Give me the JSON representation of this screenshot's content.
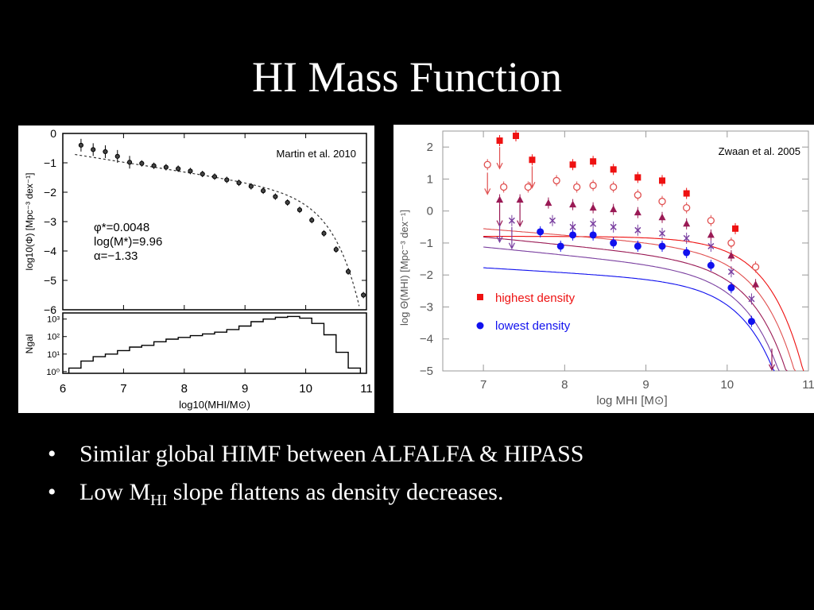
{
  "slide": {
    "title": "HI Mass Function",
    "bullets": [
      {
        "text": "Similar global HIMF between ALFALFA & HIPASS"
      },
      {
        "prefix": "Low M",
        "subscript": "HI",
        "suffix": " slope flattens as density decreases."
      }
    ]
  },
  "chart_data": [
    {
      "type": "scatter",
      "panel": "left-top",
      "annotation": "Martin et al. 2010",
      "ylabel": "log10(Φ) [Mpc⁻³ dex⁻¹]",
      "xlim": [
        6,
        11
      ],
      "ylim": [
        -6,
        0
      ],
      "grid": false,
      "text_labels": [
        "φ*=0.0048",
        "log(M*)=9.96",
        "α=−1.33"
      ],
      "points": [
        {
          "x": 6.3,
          "y": -0.4
        },
        {
          "x": 6.5,
          "y": -0.55
        },
        {
          "x": 6.7,
          "y": -0.62
        },
        {
          "x": 6.9,
          "y": -0.78
        },
        {
          "x": 7.1,
          "y": -0.98
        },
        {
          "x": 7.3,
          "y": -1.02
        },
        {
          "x": 7.5,
          "y": -1.1
        },
        {
          "x": 7.7,
          "y": -1.15
        },
        {
          "x": 7.9,
          "y": -1.2
        },
        {
          "x": 8.1,
          "y": -1.28
        },
        {
          "x": 8.3,
          "y": -1.38
        },
        {
          "x": 8.5,
          "y": -1.47
        },
        {
          "x": 8.7,
          "y": -1.58
        },
        {
          "x": 8.9,
          "y": -1.68
        },
        {
          "x": 9.1,
          "y": -1.8
        },
        {
          "x": 9.3,
          "y": -1.95
        },
        {
          "x": 9.5,
          "y": -2.15
        },
        {
          "x": 9.7,
          "y": -2.35
        },
        {
          "x": 9.9,
          "y": -2.6
        },
        {
          "x": 10.1,
          "y": -2.95
        },
        {
          "x": 10.3,
          "y": -3.4
        },
        {
          "x": 10.5,
          "y": -3.95
        },
        {
          "x": 10.7,
          "y": -4.7
        },
        {
          "x": 10.95,
          "y": -5.5
        }
      ],
      "fit": {
        "phi_star": 0.0048,
        "log_mstar": 9.96,
        "alpha": -1.33
      }
    },
    {
      "type": "bar",
      "panel": "left-bottom",
      "xlabel": "log10(MHI/M⊙)",
      "ylabel": "Ngal",
      "xlim": [
        6,
        11
      ],
      "yticks": [
        "10⁰",
        "10¹",
        "10²",
        "10³"
      ],
      "xticks": [
        "6",
        "7",
        "8",
        "9",
        "10",
        "11"
      ],
      "bins": [
        {
          "x": 6.2,
          "y": 0.2
        },
        {
          "x": 6.4,
          "y": 0.6
        },
        {
          "x": 6.6,
          "y": 0.85
        },
        {
          "x": 6.8,
          "y": 1.0
        },
        {
          "x": 7.0,
          "y": 1.2
        },
        {
          "x": 7.2,
          "y": 1.4
        },
        {
          "x": 7.4,
          "y": 1.5
        },
        {
          "x": 7.6,
          "y": 1.7
        },
        {
          "x": 7.8,
          "y": 1.85
        },
        {
          "x": 8.0,
          "y": 1.95
        },
        {
          "x": 8.2,
          "y": 2.05
        },
        {
          "x": 8.4,
          "y": 2.15
        },
        {
          "x": 8.6,
          "y": 2.25
        },
        {
          "x": 8.8,
          "y": 2.4
        },
        {
          "x": 9.0,
          "y": 2.6
        },
        {
          "x": 9.2,
          "y": 2.85
        },
        {
          "x": 9.4,
          "y": 3.0
        },
        {
          "x": 9.6,
          "y": 3.1
        },
        {
          "x": 9.8,
          "y": 3.15
        },
        {
          "x": 10.0,
          "y": 3.05
        },
        {
          "x": 10.2,
          "y": 2.75
        },
        {
          "x": 10.4,
          "y": 2.1
        },
        {
          "x": 10.6,
          "y": 1.1
        },
        {
          "x": 10.8,
          "y": 0.2
        }
      ]
    },
    {
      "type": "scatter",
      "panel": "right",
      "annotation": "Zwaan et al. 2005",
      "xlabel": "log MHI [M⊙]",
      "ylabel": "log Θ(MHI) [Mpc⁻³ dex⁻¹]",
      "xlim": [
        6.5,
        11
      ],
      "ylim": [
        -5,
        2.5
      ],
      "xticks": [
        "7",
        "8",
        "9",
        "10",
        "11"
      ],
      "yticks": [
        "2",
        "1",
        "0",
        "−1",
        "−2",
        "−3",
        "−4",
        "−5"
      ],
      "grid": false,
      "legend_entries": [
        "highest density",
        "lowest density"
      ],
      "legend_position": "lower-left",
      "series": [
        {
          "name": "highest density",
          "color": "#ee1111",
          "marker": "square",
          "points": [
            [
              7.2,
              2.2
            ],
            [
              7.4,
              2.35
            ],
            [
              7.6,
              1.6
            ],
            [
              8.1,
              1.45
            ],
            [
              8.35,
              1.55
            ],
            [
              8.6,
              1.3
            ],
            [
              8.9,
              1.05
            ],
            [
              9.2,
              0.95
            ],
            [
              9.5,
              0.55
            ],
            [
              10.1,
              -0.55
            ]
          ]
        },
        {
          "name": "",
          "color": "#e05050",
          "marker": "open-circle",
          "points": [
            [
              7.05,
              1.45
            ],
            [
              7.25,
              0.75
            ],
            [
              7.55,
              0.75
            ],
            [
              7.9,
              0.95
            ],
            [
              8.15,
              0.75
            ],
            [
              8.35,
              0.8
            ],
            [
              8.6,
              0.75
            ],
            [
              8.9,
              0.5
            ],
            [
              9.2,
              0.3
            ],
            [
              9.5,
              0.1
            ],
            [
              9.8,
              -0.3
            ],
            [
              10.05,
              -1.0
            ],
            [
              10.35,
              -1.75
            ]
          ]
        },
        {
          "name": "",
          "color": "#9a1a55",
          "marker": "triangle",
          "points": [
            [
              7.2,
              0.35
            ],
            [
              7.45,
              0.35
            ],
            [
              7.8,
              0.25
            ],
            [
              8.1,
              0.2
            ],
            [
              8.35,
              0.1
            ],
            [
              8.6,
              0.05
            ],
            [
              8.9,
              -0.05
            ],
            [
              9.2,
              -0.2
            ],
            [
              9.5,
              -0.4
            ],
            [
              9.8,
              -0.75
            ],
            [
              10.05,
              -1.4
            ],
            [
              10.35,
              -2.3
            ]
          ]
        },
        {
          "name": "",
          "color": "#7a3fa0",
          "marker": "cross",
          "points": [
            [
              7.35,
              -0.3
            ],
            [
              7.85,
              -0.3
            ],
            [
              8.1,
              -0.5
            ],
            [
              8.35,
              -0.4
            ],
            [
              8.6,
              -0.5
            ],
            [
              8.9,
              -0.6
            ],
            [
              9.2,
              -0.7
            ],
            [
              9.5,
              -0.85
            ],
            [
              9.8,
              -1.1
            ],
            [
              10.05,
              -1.9
            ],
            [
              10.3,
              -2.75
            ]
          ]
        },
        {
          "name": "lowest density",
          "color": "#1111ee",
          "marker": "filled-circle",
          "points": [
            [
              7.7,
              -0.65
            ],
            [
              7.95,
              -1.1
            ],
            [
              8.1,
              -0.75
            ],
            [
              8.35,
              -0.75
            ],
            [
              8.6,
              -1.0
            ],
            [
              8.9,
              -1.1
            ],
            [
              9.2,
              -1.1
            ],
            [
              9.5,
              -1.3
            ],
            [
              9.8,
              -1.7
            ],
            [
              10.05,
              -2.4
            ],
            [
              10.3,
              -3.45
            ]
          ]
        }
      ]
    }
  ]
}
